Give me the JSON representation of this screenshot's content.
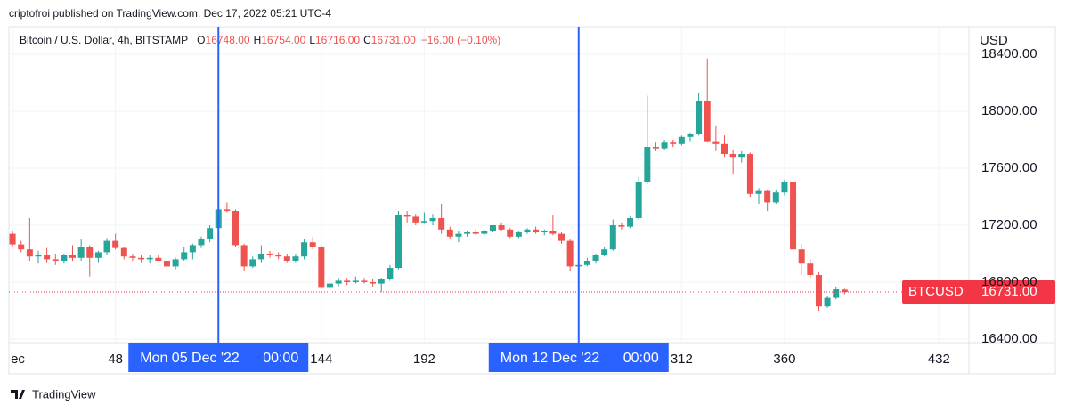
{
  "header": {
    "published": "criptofroi published on TradingView.com, Dec 17, 2022 05:21 UTC-4"
  },
  "chart_data": {
    "type": "candlestick",
    "title": "Bitcoin / U.S. Dollar, 4h, BITSTAMP",
    "legend": [
      {
        "label": "O",
        "text": "16748.00"
      },
      {
        "label": "H",
        "text": "16754.00"
      },
      {
        "label": "L",
        "text": "16716.00"
      },
      {
        "label": "C",
        "text": "16731.00"
      }
    ],
    "change": "−16.00 (−0.10%)",
    "y_axis_unit": "USD",
    "up_color": "#26a69a",
    "down_color": "#ef5350",
    "grid": true,
    "xlim": [
      -1.7,
      446
    ],
    "ylim": [
      16375,
      18594
    ],
    "xticks": [
      {
        "value": 0,
        "label": "ec"
      },
      48,
      144,
      192,
      312,
      360,
      432
    ],
    "yticks": [
      {
        "value": 16400,
        "label": "16400.00"
      },
      {
        "value": 16800,
        "label": "16800.00"
      },
      {
        "value": 17200,
        "label": "17200.00"
      },
      {
        "value": 17600,
        "label": "17600.00"
      },
      {
        "value": 18000,
        "label": "18000.00"
      },
      {
        "value": 18400,
        "label": "18400.00"
      }
    ],
    "x": [
      0,
      4,
      8,
      12,
      16,
      20,
      24,
      28,
      32,
      36,
      40,
      44,
      48,
      52,
      56,
      60,
      64,
      68,
      72,
      76,
      80,
      84,
      88,
      92,
      96,
      100,
      104,
      108,
      112,
      116,
      120,
      124,
      128,
      132,
      136,
      140,
      144,
      148,
      152,
      156,
      160,
      164,
      168,
      172,
      176,
      180,
      184,
      188,
      192,
      196,
      200,
      204,
      208,
      212,
      216,
      220,
      224,
      228,
      232,
      236,
      240,
      244,
      248,
      252,
      256,
      260,
      264,
      268,
      272,
      276,
      280,
      284,
      288,
      292,
      296,
      300,
      304,
      308,
      312,
      316,
      320,
      324,
      328,
      332,
      336,
      340,
      344,
      348,
      352,
      356,
      360,
      364,
      368,
      372,
      376,
      380,
      384,
      388
    ],
    "series": [
      {
        "name": "BTCUSD",
        "open": [
          17140,
          17065,
          17030,
          16980,
          16990,
          16960,
          16950,
          16990,
          16970,
          17050,
          16970,
          17010,
          17090,
          17040,
          16980,
          16970,
          16960,
          16970,
          16950,
          16910,
          16960,
          17010,
          17060,
          17100,
          17180,
          17310,
          17300,
          17060,
          16910,
          16960,
          17000,
          16990,
          16980,
          16950,
          16980,
          17080,
          17050,
          16760,
          16790,
          16810,
          16800,
          16810,
          16800,
          16790,
          16820,
          16900,
          17270,
          17260,
          17220,
          17230,
          17250,
          17170,
          17120,
          17140,
          17150,
          17140,
          17160,
          17200,
          17170,
          17120,
          17150,
          17170,
          17150,
          17160,
          17140,
          17090,
          16910,
          16920,
          16950,
          16990,
          17030,
          17200,
          17190,
          17250,
          17500,
          17750,
          17740,
          17780,
          17770,
          17820,
          17840,
          18070,
          17790,
          17770,
          17700,
          17680,
          17700,
          17420,
          17440,
          17360,
          17430,
          17500,
          17030,
          16930,
          16850,
          16630,
          16690,
          16748
        ],
        "high": [
          17160,
          17090,
          17250,
          17020,
          17040,
          17000,
          17000,
          17060,
          17100,
          17060,
          17020,
          17110,
          17140,
          17050,
          17000,
          16990,
          16990,
          16990,
          16970,
          16970,
          17050,
          17070,
          17120,
          17200,
          17340,
          17360,
          17310,
          17070,
          16980,
          17060,
          17020,
          17010,
          17000,
          17000,
          17100,
          17120,
          17060,
          16810,
          16830,
          16830,
          16840,
          16830,
          16820,
          16830,
          16920,
          17300,
          17300,
          17280,
          17290,
          17280,
          17350,
          17190,
          17160,
          17160,
          17170,
          17170,
          17200,
          17220,
          17180,
          17160,
          17180,
          17190,
          17170,
          17270,
          17150,
          17100,
          16940,
          16970,
          17000,
          17050,
          17240,
          17220,
          17260,
          17540,
          18110,
          17780,
          17800,
          17800,
          17830,
          17850,
          18130,
          18370,
          17900,
          17830,
          17730,
          17720,
          17710,
          17460,
          17450,
          17450,
          17520,
          17510,
          17070,
          16960,
          16870,
          16700,
          16770,
          16754
        ],
        "low": [
          17050,
          17010,
          16950,
          16930,
          16940,
          16920,
          16930,
          16950,
          16950,
          16840,
          16940,
          16990,
          17030,
          16960,
          16950,
          16940,
          16930,
          16950,
          16900,
          16890,
          16950,
          16960,
          17040,
          17080,
          17170,
          17290,
          17050,
          16880,
          16900,
          16940,
          16970,
          16960,
          16940,
          16940,
          16960,
          17030,
          16750,
          16750,
          16770,
          16780,
          16790,
          16790,
          16770,
          16730,
          16810,
          16890,
          17220,
          17200,
          17210,
          17200,
          17140,
          17100,
          17080,
          17120,
          17130,
          17130,
          17150,
          17160,
          17110,
          17110,
          17140,
          17140,
          17130,
          17130,
          17070,
          16880,
          16890,
          16910,
          16930,
          16980,
          17020,
          17170,
          17180,
          17240,
          17490,
          17720,
          17730,
          17750,
          17760,
          17790,
          17830,
          17780,
          17720,
          17680,
          17560,
          17640,
          17400,
          17350,
          17300,
          17350,
          17410,
          17000,
          16850,
          16830,
          16600,
          16620,
          16680,
          16716
        ],
        "close": [
          17065,
          17030,
          16980,
          16990,
          16960,
          16950,
          16990,
          16970,
          17050,
          16970,
          17010,
          17090,
          17040,
          16980,
          16970,
          16960,
          16970,
          16950,
          16910,
          16960,
          17010,
          17060,
          17100,
          17180,
          17310,
          17300,
          17060,
          16910,
          16960,
          17000,
          16990,
          16980,
          16950,
          16980,
          17080,
          17050,
          16760,
          16790,
          16810,
          16800,
          16810,
          16800,
          16790,
          16820,
          16900,
          17270,
          17260,
          17220,
          17230,
          17250,
          17170,
          17120,
          17140,
          17150,
          17140,
          17160,
          17200,
          17170,
          17120,
          17150,
          17170,
          17150,
          17160,
          17140,
          17090,
          16910,
          16920,
          16950,
          16990,
          17030,
          17200,
          17190,
          17250,
          17500,
          17750,
          17740,
          17780,
          17770,
          17820,
          17840,
          18070,
          17790,
          17770,
          17700,
          17680,
          17700,
          17420,
          17440,
          17360,
          17430,
          17500,
          17030,
          16930,
          16850,
          16630,
          16690,
          16750,
          16731
        ]
      }
    ],
    "last_price": {
      "value": 16731,
      "label": "16731.00"
    },
    "crosshairs": [
      {
        "x": 96,
        "label": "Mon 05 Dec '22",
        "time": "00:00"
      },
      {
        "x": 264,
        "label": "Mon 12 Dec '22",
        "time": "00:00"
      }
    ]
  },
  "footer": {
    "brand": "TradingView"
  }
}
